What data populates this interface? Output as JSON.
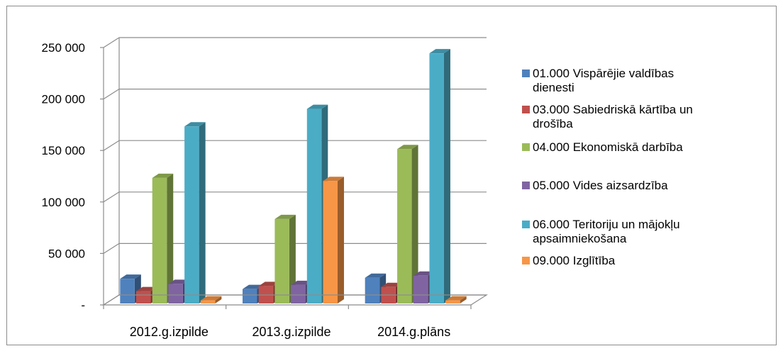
{
  "chart_data": {
    "type": "bar",
    "style": "3d-clustered-column",
    "categories": [
      "2012.g.izpilde",
      "2013.g.izpilde",
      "2014.g.plāns"
    ],
    "y_ticks": [
      "-",
      "50 000",
      "100 000",
      "150 000",
      "200 000",
      "250 000"
    ],
    "ylim": [
      0,
      250000
    ],
    "grid": true,
    "legend_position": "right",
    "series": [
      {
        "name": "01.000 Vispārējie valdības dienesti",
        "color": "#4F81BD",
        "values": [
          24000,
          14000,
          25000
        ]
      },
      {
        "name": "03.000 Sabiedriskā kārtība un drošība",
        "color": "#C0504D",
        "values": [
          12000,
          17000,
          16000
        ]
      },
      {
        "name": "04.000 Ekonomiskā darbība",
        "color": "#9BBB59",
        "values": [
          122000,
          82000,
          150000
        ]
      },
      {
        "name": "05.000 Vides aizsardzība",
        "color": "#8064A2",
        "values": [
          19000,
          18000,
          27000
        ]
      },
      {
        "name": "06.000 Teritoriju un mājokļu apsaimniekošana",
        "color": "#4BACC6",
        "values": [
          172000,
          189000,
          243000
        ]
      },
      {
        "name": "09.000 Izglītība",
        "color": "#F79646",
        "values": [
          3000,
          119000,
          3000
        ]
      }
    ]
  }
}
